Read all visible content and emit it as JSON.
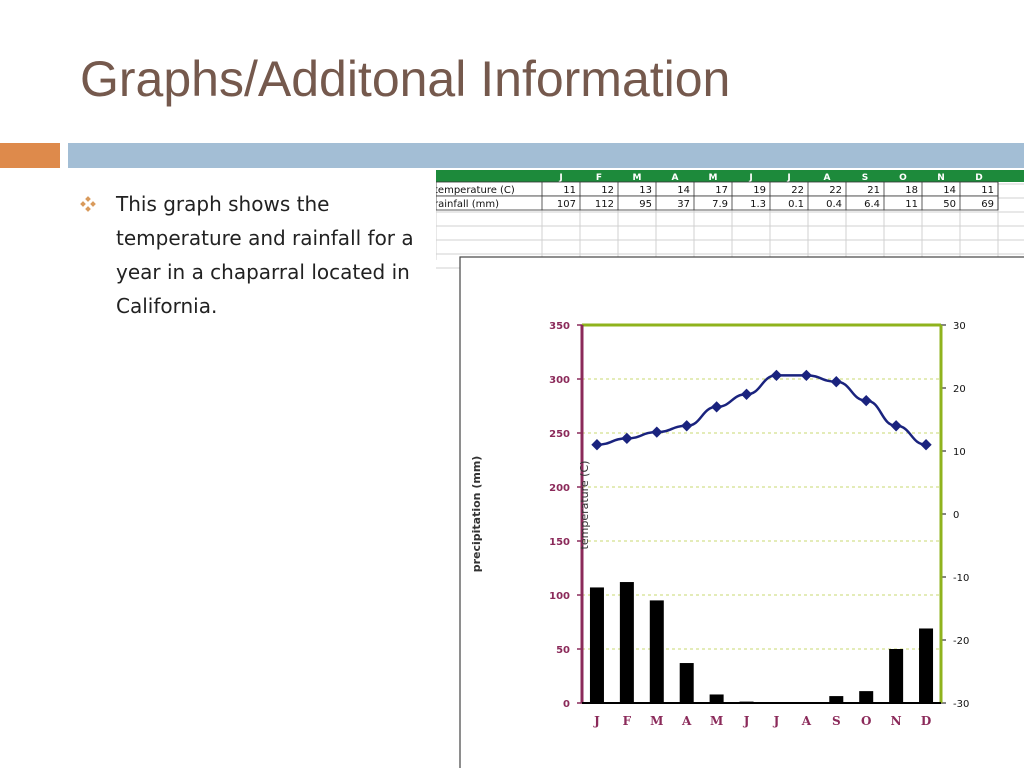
{
  "slide": {
    "title": "Graphs/Additonal Information",
    "bullet": "This graph shows the temperature and rainfall for a year in a chaparral located in California.",
    "colors": {
      "title": "#75594d",
      "band_orange": "#de8a4b",
      "band_blue": "#a3bed5",
      "bullet_icon": "#d99a5c"
    },
    "bullet_icon": "diamond-cluster-icon"
  },
  "chart_data": [
    {
      "type": "table",
      "columns": [
        "",
        "J",
        "F",
        "M",
        "A",
        "M",
        "J",
        "J",
        "A",
        "S",
        "O",
        "N",
        "D"
      ],
      "rows": [
        {
          "label": "temperature (C)",
          "values": [
            "11",
            "12",
            "13",
            "14",
            "17",
            "19",
            "22",
            "22",
            "21",
            "18",
            "14",
            "11"
          ]
        },
        {
          "label": "rainfall (mm)",
          "values": [
            "107",
            "112",
            "95",
            "37",
            "7.9",
            "1.3",
            "0.1",
            "0.4",
            "6.4",
            "11",
            "50",
            "69"
          ]
        }
      ]
    },
    {
      "type": "bar",
      "categories": [
        "J",
        "F",
        "M",
        "A",
        "M",
        "J",
        "J",
        "A",
        "S",
        "O",
        "N",
        "D"
      ],
      "series": [
        {
          "name": "",
          "type": "bar",
          "axis": "left",
          "values": [
            107,
            112,
            95,
            37,
            7.9,
            1.3,
            0.1,
            0.4,
            6.4,
            11,
            50,
            69
          ],
          "color": "#000000"
        },
        {
          "name": "",
          "type": "line",
          "axis": "right",
          "values": [
            11,
            12,
            13,
            14,
            17,
            19,
            22,
            22,
            21,
            18,
            14,
            11
          ],
          "color": "#1a237e"
        }
      ],
      "ylabel": "precipitation (mm)",
      "ylabel_right": "temperature (C)",
      "ylim": [
        0,
        350
      ],
      "ylim_right": [
        -30,
        30
      ],
      "yticks": [
        "0",
        "50",
        "100",
        "150",
        "200",
        "250",
        "300",
        "350"
      ],
      "yticks_right": [
        "-30",
        "-20",
        "-10",
        "0",
        "10",
        "20",
        "30"
      ],
      "grid": true,
      "left_axis_color": "#8b2a5a",
      "right_axis_color": "#8fb31d"
    }
  ]
}
